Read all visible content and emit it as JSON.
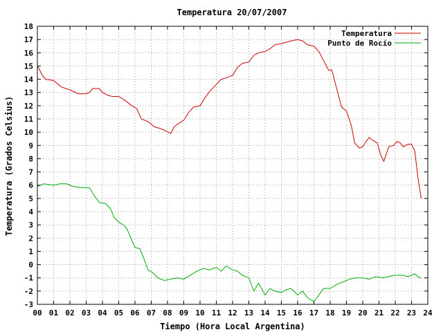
{
  "chart_data": {
    "type": "line",
    "title": "Temperatura 20/07/2007",
    "xlabel": "Tiempo (Hora Local Argentina)",
    "ylabel": "Temperatura (Grados Celsius)",
    "xlim": [
      0,
      24
    ],
    "ylim": [
      -3,
      18
    ],
    "xticks": [
      "00",
      "01",
      "02",
      "03",
      "04",
      "05",
      "06",
      "07",
      "08",
      "09",
      "10",
      "11",
      "12",
      "13",
      "14",
      "15",
      "16",
      "17",
      "18",
      "19",
      "20",
      "21",
      "22",
      "23",
      "24"
    ],
    "yticks": [
      "-3",
      "-2",
      "-1",
      "0",
      "1",
      "2",
      "3",
      "4",
      "5",
      "6",
      "7",
      "8",
      "9",
      "10",
      "11",
      "12",
      "13",
      "14",
      "15",
      "16",
      "17",
      "18"
    ],
    "grid": true,
    "legend_position": "top-right",
    "series": [
      {
        "name": "Temperatura",
        "color": "#cc0000",
        "x": [
          0,
          0.1,
          0.3,
          0.5,
          1.0,
          1.3,
          1.5,
          2.0,
          2.5,
          3.0,
          3.2,
          3.4,
          3.8,
          4.0,
          4.3,
          4.6,
          5.0,
          5.4,
          5.8,
          6.1,
          6.4,
          6.8,
          7.2,
          7.5,
          7.9,
          8.2,
          8.4,
          8.6,
          9.0,
          9.3,
          9.6,
          10.0,
          10.3,
          10.6,
          11.0,
          11.3,
          11.6,
          12.0,
          12.3,
          12.6,
          13.0,
          13.3,
          13.6,
          14.0,
          14.3,
          14.6,
          15.0,
          15.3,
          15.6,
          16.0,
          16.3,
          16.6,
          17.0,
          17.3,
          17.6,
          17.9,
          18.1,
          18.4,
          18.7,
          19.0,
          19.3,
          19.5,
          19.8,
          20.0,
          20.2,
          20.4,
          20.6,
          20.9,
          21.1,
          21.3,
          21.6,
          21.9,
          22.1,
          22.3,
          22.5,
          22.8,
          23.0,
          23.2,
          23.4,
          23.6
        ],
        "values": [
          15.0,
          14.8,
          14.3,
          14.0,
          13.9,
          13.6,
          13.4,
          13.2,
          12.9,
          12.9,
          13.0,
          13.3,
          13.3,
          13.0,
          12.8,
          12.7,
          12.7,
          12.4,
          12.0,
          11.8,
          11.0,
          10.8,
          10.4,
          10.3,
          10.1,
          9.9,
          10.4,
          10.6,
          10.9,
          11.5,
          11.9,
          12.0,
          12.6,
          13.1,
          13.6,
          14.0,
          14.1,
          14.3,
          14.9,
          15.2,
          15.3,
          15.8,
          16.0,
          16.1,
          16.3,
          16.6,
          16.7,
          16.8,
          16.9,
          17.0,
          16.9,
          16.6,
          16.5,
          16.1,
          15.4,
          14.7,
          14.7,
          13.3,
          11.9,
          11.6,
          10.5,
          9.2,
          8.8,
          8.9,
          9.3,
          9.6,
          9.4,
          9.2,
          8.3,
          7.8,
          8.9,
          9.0,
          9.3,
          9.2,
          8.9,
          9.1,
          9.1,
          8.6,
          6.5,
          5.0
        ]
      },
      {
        "name": "Punto de Rocío",
        "color": "#00aa00",
        "x": [
          0,
          0.4,
          1.0,
          1.4,
          1.8,
          2.2,
          2.8,
          3.2,
          3.5,
          3.8,
          4.2,
          4.5,
          4.7,
          5.0,
          5.3,
          5.5,
          6.0,
          6.3,
          6.5,
          6.8,
          7.1,
          7.4,
          7.8,
          8.2,
          8.6,
          9.0,
          9.4,
          9.8,
          10.2,
          10.6,
          11.0,
          11.3,
          11.6,
          12.0,
          12.3,
          12.6,
          13.0,
          13.3,
          13.6,
          14.0,
          14.3,
          14.6,
          15.0,
          15.3,
          15.6,
          16.0,
          16.3,
          16.6,
          17.0,
          17.3,
          17.6,
          18.0,
          18.4,
          18.8,
          19.2,
          19.6,
          20.0,
          20.4,
          20.8,
          21.2,
          21.6,
          22.0,
          22.4,
          22.8,
          23.2,
          23.5,
          23.6
        ],
        "values": [
          5.9,
          6.1,
          6.0,
          6.1,
          6.1,
          5.9,
          5.8,
          5.8,
          5.2,
          4.7,
          4.6,
          4.2,
          3.6,
          3.2,
          3.0,
          2.7,
          1.3,
          1.2,
          0.6,
          -0.4,
          -0.6,
          -1.0,
          -1.2,
          -1.1,
          -1.0,
          -1.1,
          -0.8,
          -0.5,
          -0.3,
          -0.4,
          -0.2,
          -0.5,
          -0.1,
          -0.4,
          -0.5,
          -0.8,
          -1.0,
          -2.0,
          -1.4,
          -2.3,
          -1.8,
          -2.0,
          -2.1,
          -1.9,
          -1.8,
          -2.3,
          -2.0,
          -2.5,
          -2.8,
          -2.3,
          -1.8,
          -1.8,
          -1.5,
          -1.3,
          -1.1,
          -1.0,
          -1.0,
          -1.1,
          -0.9,
          -1.0,
          -0.9,
          -0.8,
          -0.8,
          -0.9,
          -0.7,
          -1.0,
          -1.0
        ]
      }
    ]
  }
}
